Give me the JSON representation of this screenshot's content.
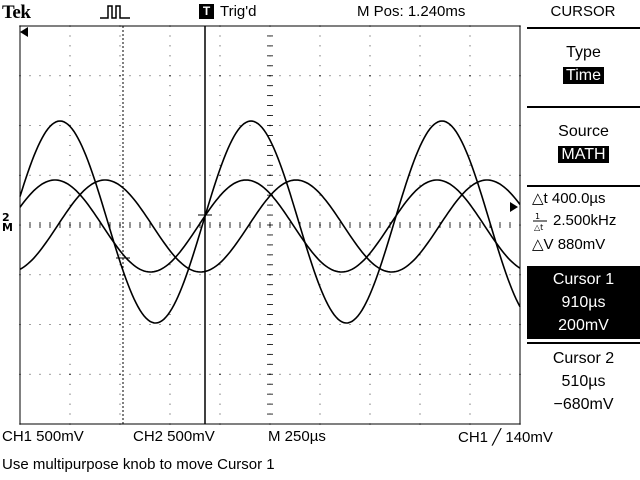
{
  "header": {
    "brand": "Tek",
    "trig_badge": "T",
    "trig_status": "Trig'd",
    "mpos": "M Pos: 1.240ms",
    "acq_icon": "pulse-waveform-icon"
  },
  "menu": {
    "title": "CURSOR",
    "type_label": "Type",
    "type_value": "Time",
    "source_label": "Source",
    "source_value": "MATH",
    "cursor1": {
      "label": "Cursor 1",
      "time": "910µs",
      "voltage": "200mV"
    },
    "cursor2": {
      "label": "Cursor 2",
      "time": "510µs",
      "voltage": "−680mV"
    }
  },
  "readouts": {
    "delta_t": "△t 400.0µs",
    "inv_delta_t": "2.500kHz",
    "delta_v": "△V 880mV"
  },
  "footer": {
    "ch1": "CH1  500mV",
    "ch2": "CH2  500mV",
    "timebase": "M 250µs",
    "trigger": "CH1 ╱ 140mV",
    "help": "Use multipurpose knob to move Cursor 1"
  },
  "markers": {
    "ground": "2",
    "math": "M"
  },
  "colors": {
    "background": "#ffffff",
    "foreground": "#000000"
  }
}
